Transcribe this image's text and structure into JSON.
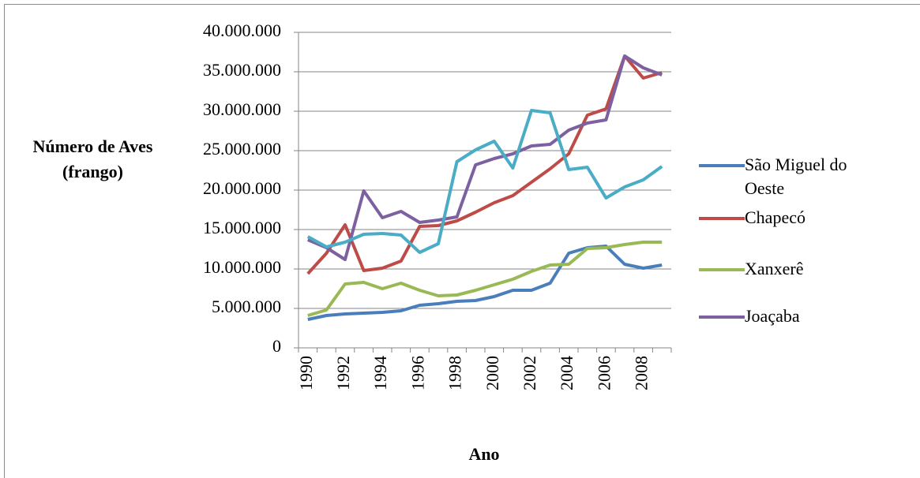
{
  "chart_data": {
    "type": "line",
    "y_label": "Número de Aves (frango)",
    "x_label": "Ano",
    "categories": [
      "1990",
      null,
      "1992",
      null,
      "1994",
      null,
      "1996",
      null,
      "1998",
      null,
      "2000",
      null,
      "2002",
      null,
      "2004",
      null,
      "2006",
      null,
      "2008",
      null
    ],
    "series": [
      {
        "name": "São Miguel do Oeste",
        "color": "#4a7ebb",
        "values": [
          3600000,
          4100000,
          4300000,
          4400000,
          4500000,
          4700000,
          5400000,
          5600000,
          5900000,
          6000000,
          6500000,
          7300000,
          7300000,
          8200000,
          12000000,
          12700000,
          12900000,
          10600000,
          10100000,
          10500000
        ]
      },
      {
        "name": "Chapecó",
        "color": "#be4b48",
        "values": [
          9400000,
          12000000,
          15600000,
          9800000,
          10100000,
          11000000,
          15400000,
          15500000,
          16100000,
          17200000,
          18400000,
          19300000,
          21000000,
          22700000,
          24600000,
          29500000,
          30300000,
          37000000,
          34200000,
          34900000
        ]
      },
      {
        "name": "Xanxerê",
        "color": "#98b954",
        "values": [
          4100000,
          4800000,
          8100000,
          8300000,
          7500000,
          8200000,
          7300000,
          6600000,
          6700000,
          7300000,
          8000000,
          8700000,
          9700000,
          10500000,
          10600000,
          12600000,
          12700000,
          13100000,
          13400000,
          13400000
        ]
      },
      {
        "name": "Joaçaba",
        "color": "#7d60a0",
        "values": [
          13700000,
          12700000,
          11200000,
          19900000,
          16500000,
          17300000,
          15900000,
          16200000,
          16600000,
          23200000,
          24000000,
          24600000,
          25600000,
          25800000,
          27600000,
          28500000,
          28900000,
          37000000,
          35500000,
          34600000
        ]
      },
      {
        "color": "#4bacc6",
        "values": [
          14100000,
          12800000,
          13400000,
          14400000,
          14500000,
          14300000,
          12100000,
          13200000,
          23600000,
          25100000,
          26200000,
          22800000,
          30100000,
          29800000,
          22600000,
          22900000,
          19000000,
          20400000,
          21300000,
          23000000
        ]
      }
    ],
    "ylim": [
      0,
      40000000
    ],
    "yticks": [
      0,
      {
        "value": 5000000,
        "label": "5.000.000"
      },
      {
        "value": 10000000,
        "label": "10.000.000"
      },
      {
        "value": 15000000,
        "label": "15.000.000"
      },
      {
        "value": 20000000,
        "label": "20.000.000"
      },
      {
        "value": 25000000,
        "label": "25.000.000"
      },
      {
        "value": 30000000,
        "label": "30.000.000"
      },
      {
        "value": 35000000,
        "label": "35.000.000"
      },
      {
        "value": 40000000,
        "label": "40.000.000"
      }
    ],
    "grid": true
  }
}
